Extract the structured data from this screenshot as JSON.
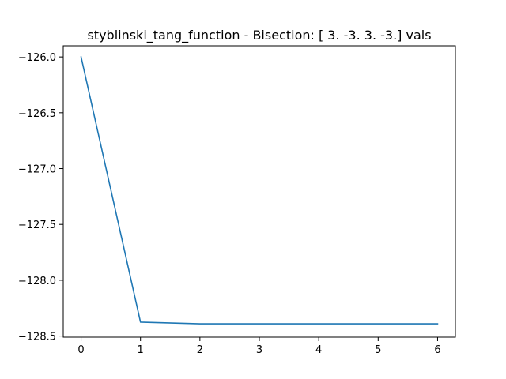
{
  "chart_data": {
    "type": "line",
    "title": "styblinski_tang_function - Bisection: [ 3. -3.  3. -3.] vals",
    "xlabel": "",
    "ylabel": "",
    "x": [
      0,
      1,
      2,
      3,
      4,
      5,
      6
    ],
    "series": [
      {
        "values": [
          -126.0,
          -128.375,
          -128.39,
          -128.39,
          -128.39,
          -128.39,
          -128.39
        ],
        "color": "#1f77b4"
      }
    ],
    "xlim": [
      -0.3,
      6.3
    ],
    "ylim": [
      -128.51,
      -125.9
    ],
    "xticks": [
      0,
      1,
      2,
      3,
      4,
      5,
      6
    ],
    "xtick_labels": [
      "0",
      "1",
      "2",
      "3",
      "4",
      "5",
      "6"
    ],
    "yticks": [
      -126.0,
      -126.5,
      -127.0,
      -127.5,
      -128.0,
      -128.5
    ],
    "ytick_labels": [
      "−126.0",
      "−126.5",
      "−127.0",
      "−127.5",
      "−128.0",
      "−128.5"
    ],
    "grid": false,
    "legend": "none"
  }
}
